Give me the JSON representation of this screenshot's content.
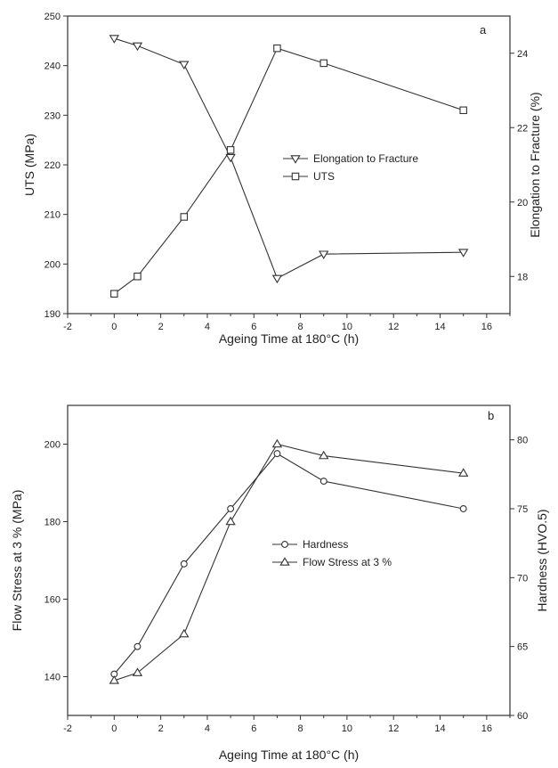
{
  "chart_data": [
    {
      "type": "line",
      "panel_label": "a",
      "xlabel": "Ageing Time at 180°C (h)",
      "ylabel_left": "UTS (MPa)",
      "ylabel_right": "Elongation to Fracture (%)",
      "xlim": [
        -2,
        17
      ],
      "xticks": [
        -2,
        0,
        2,
        4,
        6,
        8,
        10,
        12,
        14,
        16
      ],
      "ylim_left": [
        190,
        250
      ],
      "yticks_left": [
        190,
        200,
        210,
        220,
        230,
        240,
        250
      ],
      "ylim_right": [
        17.0,
        25.0
      ],
      "yticks_right": [
        18,
        20,
        22,
        24
      ],
      "legend_position": "center-right",
      "series": [
        {
          "name": "Elongation to Fracture",
          "axis": "right",
          "marker": "triangle-down",
          "x": [
            0,
            1,
            3,
            5,
            7,
            9,
            15
          ],
          "y": [
            24.4,
            24.2,
            23.7,
            21.2,
            17.95,
            18.6,
            18.65
          ]
        },
        {
          "name": "UTS",
          "axis": "left",
          "marker": "square",
          "x": [
            0,
            1,
            3,
            5,
            7,
            9,
            15
          ],
          "y": [
            194,
            197.5,
            209.5,
            223,
            243.5,
            240.5,
            231
          ]
        }
      ]
    },
    {
      "type": "line",
      "panel_label": "b",
      "xlabel": "Ageing Time at 180°C (h)",
      "ylabel_left": "Flow Stress at 3 % (MPa)",
      "ylabel_right": "Hardness (HVO.5)",
      "xlim": [
        -2,
        17
      ],
      "xticks": [
        -2,
        0,
        2,
        4,
        6,
        8,
        10,
        12,
        14,
        16
      ],
      "ylim_left": [
        130,
        210
      ],
      "yticks_left": [
        140,
        160,
        180,
        200
      ],
      "ylim_right": [
        60,
        82.5
      ],
      "yticks_right": [
        60,
        65,
        70,
        75,
        80
      ],
      "legend_position": "center-right",
      "series": [
        {
          "name": "Hardness",
          "axis": "right",
          "marker": "circle",
          "x": [
            0,
            1,
            3,
            5,
            7,
            9,
            15
          ],
          "y": [
            63.0,
            65.0,
            71.0,
            75.0,
            79.0,
            77.0,
            75.0
          ]
        },
        {
          "name": "Flow Stress at 3 %",
          "axis": "left",
          "marker": "triangle-up",
          "x": [
            0,
            1,
            3,
            5,
            7,
            9,
            15
          ],
          "y": [
            139,
            141,
            151,
            180,
            200,
            197,
            192.5
          ]
        }
      ]
    }
  ]
}
